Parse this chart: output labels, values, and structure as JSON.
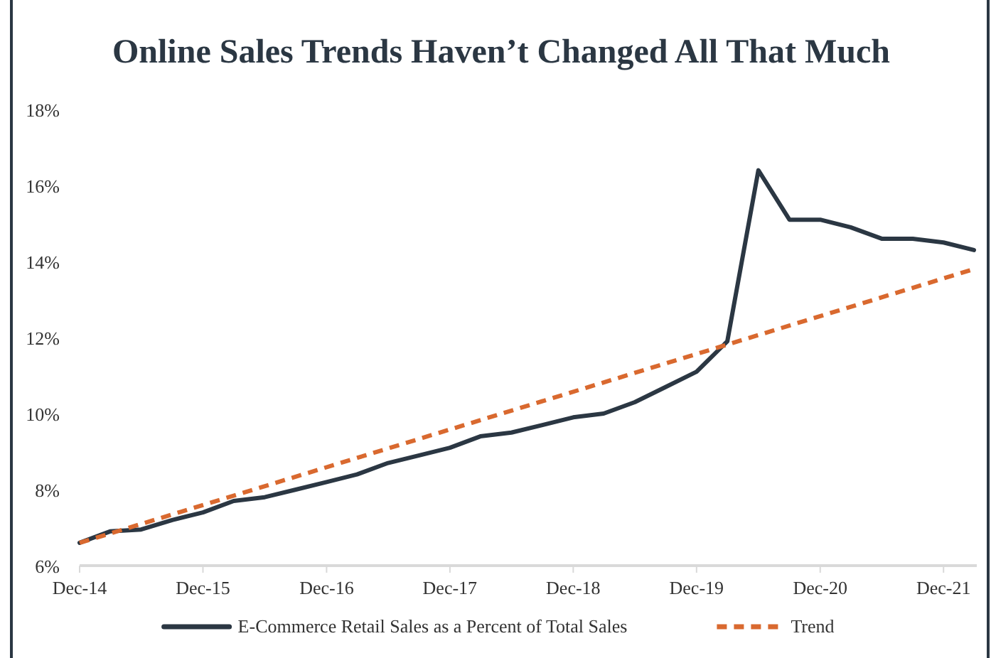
{
  "chart_data": {
    "type": "line",
    "title": "Online Sales Trends Haven’t Changed All That Much",
    "x": [
      "2014-12",
      "2015-03",
      "2015-06",
      "2015-09",
      "2015-12",
      "2016-03",
      "2016-06",
      "2016-09",
      "2016-12",
      "2017-03",
      "2017-06",
      "2017-09",
      "2017-12",
      "2018-03",
      "2018-06",
      "2018-09",
      "2018-12",
      "2019-03",
      "2019-06",
      "2019-09",
      "2019-12",
      "2020-03",
      "2020-06",
      "2020-09",
      "2020-12",
      "2021-03",
      "2021-06",
      "2021-09",
      "2021-12",
      "2022-03"
    ],
    "series": [
      {
        "name": "E-Commerce Retail Sales as a Percent of Total Sales",
        "color": "#2b3743",
        "line_style": "solid",
        "values": [
          6.6,
          6.9,
          6.95,
          7.2,
          7.4,
          7.7,
          7.8,
          8.0,
          8.2,
          8.4,
          8.7,
          8.9,
          9.1,
          9.4,
          9.5,
          9.7,
          9.9,
          10.0,
          10.3,
          10.7,
          11.1,
          11.9,
          16.4,
          15.1,
          15.1,
          14.9,
          14.6,
          14.6,
          14.5,
          14.3
        ]
      },
      {
        "name": "Trend",
        "color": "#d9692f",
        "line_style": "dashed",
        "x": [
          "2014-12",
          "2022-03"
        ],
        "values": [
          6.6,
          13.8
        ]
      }
    ],
    "xlim": [
      "2014-12",
      "2022-03"
    ],
    "xticks": [
      {
        "value": "2014-12",
        "label": "Dec-14"
      },
      {
        "value": "2015-12",
        "label": "Dec-15"
      },
      {
        "value": "2016-12",
        "label": "Dec-16"
      },
      {
        "value": "2017-12",
        "label": "Dec-17"
      },
      {
        "value": "2018-12",
        "label": "Dec-18"
      },
      {
        "value": "2019-12",
        "label": "Dec-19"
      },
      {
        "value": "2020-12",
        "label": "Dec-20"
      },
      {
        "value": "2021-12",
        "label": "Dec-21"
      }
    ],
    "ylim": [
      6,
      18
    ],
    "yticks": [
      {
        "value": 6,
        "label": "6%"
      },
      {
        "value": 8,
        "label": "8%"
      },
      {
        "value": 10,
        "label": "10%"
      },
      {
        "value": 12,
        "label": "12%"
      },
      {
        "value": 14,
        "label": "14%"
      },
      {
        "value": 16,
        "label": "16%"
      },
      {
        "value": 18,
        "label": "18%"
      }
    ],
    "grid": false,
    "legend": "bottom"
  }
}
